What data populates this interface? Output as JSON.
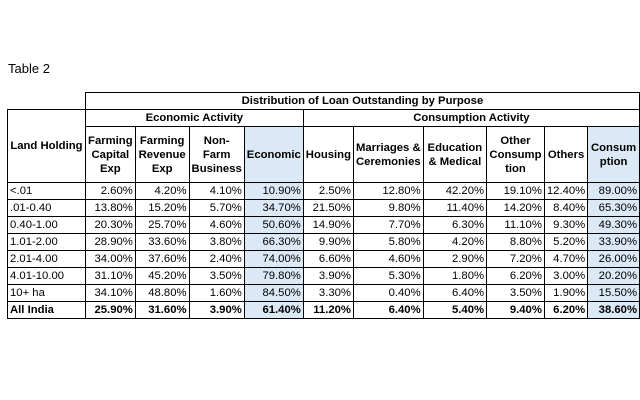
{
  "caption": "Table 2",
  "table": {
    "main_header": "Distribution of Loan Outstanding by Purpose",
    "row_header": "Land Holding",
    "groups": {
      "economic": "Economic Activity",
      "consumption": "Consumption Activity"
    },
    "columns": [
      "Farming Capital Exp",
      "Farming Revenue Exp",
      "Non- Farm Business",
      "Economic",
      "Housing",
      "Marriages & Ceremonies",
      "Education & Medical",
      "Other Consump tion",
      "Others",
      "Consum ption"
    ],
    "rows": [
      {
        "label": "<.01",
        "values": [
          "2.60%",
          "4.20%",
          "4.10%",
          "10.90%",
          "2.50%",
          "12.80%",
          "42.20%",
          "19.10%",
          "12.40%",
          "89.00%"
        ]
      },
      {
        "label": ".01-0.40",
        "values": [
          "13.80%",
          "15.20%",
          "5.70%",
          "34.70%",
          "21.50%",
          "9.80%",
          "11.40%",
          "14.20%",
          "8.40%",
          "65.30%"
        ]
      },
      {
        "label": "0.40-1.00",
        "values": [
          "20.30%",
          "25.70%",
          "4.60%",
          "50.60%",
          "14.90%",
          "7.70%",
          "6.30%",
          "11.10%",
          "9.30%",
          "49.30%"
        ]
      },
      {
        "label": "1.01-2.00",
        "values": [
          "28.90%",
          "33.60%",
          "3.80%",
          "66.30%",
          "9.90%",
          "5.80%",
          "4.20%",
          "8.80%",
          "5.20%",
          "33.90%"
        ]
      },
      {
        "label": "2.01-4.00",
        "values": [
          "34.00%",
          "37.60%",
          "2.40%",
          "74.00%",
          "6.60%",
          "4.60%",
          "2.90%",
          "7.20%",
          "4.70%",
          "26.00%"
        ]
      },
      {
        "label": "4.01-10.00",
        "values": [
          "31.10%",
          "45.20%",
          "3.50%",
          "79.80%",
          "3.90%",
          "5.30%",
          "1.80%",
          "6.20%",
          "3.00%",
          "20.20%"
        ]
      },
      {
        "label": "10+ ha",
        "values": [
          "34.10%",
          "48.80%",
          "1.60%",
          "84.50%",
          "3.30%",
          "0.40%",
          "6.40%",
          "3.50%",
          "1.90%",
          "15.50%"
        ]
      },
      {
        "label": "All India",
        "values": [
          "25.90%",
          "31.60%",
          "3.90%",
          "61.40%",
          "11.20%",
          "6.40%",
          "5.40%",
          "9.40%",
          "6.20%",
          "38.60%"
        ]
      }
    ],
    "highlight_color": "#dbe8f5"
  }
}
